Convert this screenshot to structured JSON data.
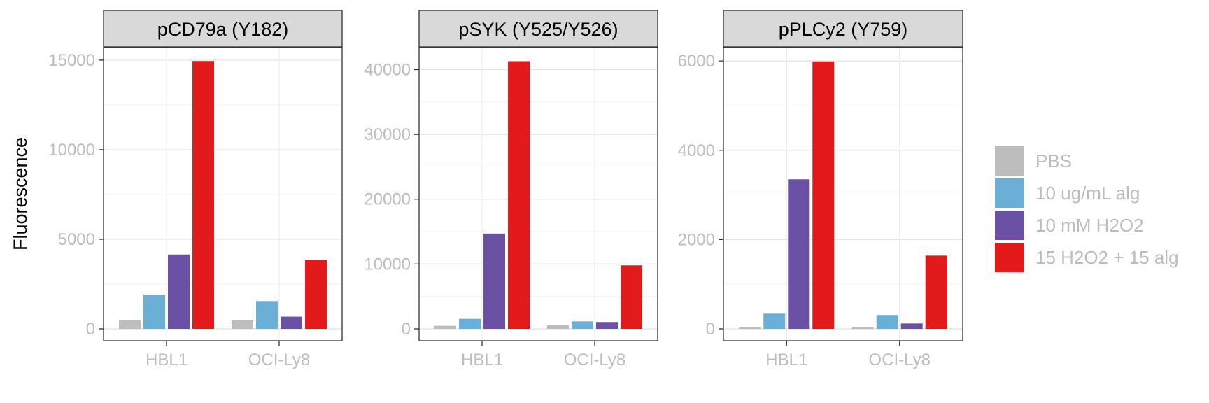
{
  "chart_data": [
    {
      "type": "bar",
      "title": "pCD79a (Y182)",
      "ylabel": "Fluorescence",
      "categories": [
        "HBL1",
        "OCI-Ly8"
      ],
      "yticks": [
        0,
        5000,
        10000,
        15000
      ],
      "ylim": [
        0,
        15700
      ],
      "series": [
        {
          "name": "PBS",
          "values": [
            480,
            470
          ]
        },
        {
          "name": "10 ug/mL alg",
          "values": [
            1900,
            1550
          ]
        },
        {
          "name": "10 mM H2O2",
          "values": [
            4150,
            680
          ]
        },
        {
          "name": "15 H2O2 + 15 alg",
          "values": [
            14950,
            3850
          ]
        }
      ]
    },
    {
      "type": "bar",
      "title": "pSYK (Y525/Y526)",
      "categories": [
        "HBL1",
        "OCI-Ly8"
      ],
      "yticks": [
        0,
        10000,
        20000,
        30000,
        40000
      ],
      "ylim": [
        0,
        43400
      ],
      "series": [
        {
          "name": "PBS",
          "values": [
            480,
            560
          ]
        },
        {
          "name": "10 ug/mL alg",
          "values": [
            1550,
            1150
          ]
        },
        {
          "name": "10 mM H2O2",
          "values": [
            14700,
            1050
          ]
        },
        {
          "name": "15 H2O2 + 15 alg",
          "values": [
            41300,
            9800
          ]
        }
      ]
    },
    {
      "type": "bar",
      "title": "pPLCy2 (Y759)",
      "categories": [
        "HBL1",
        "OCI-Ly8"
      ],
      "yticks": [
        0,
        2000,
        4000,
        6000
      ],
      "ylim": [
        0,
        6300
      ],
      "series": [
        {
          "name": "PBS",
          "values": [
            40,
            40
          ]
        },
        {
          "name": "10 ug/mL alg",
          "values": [
            340,
            310
          ]
        },
        {
          "name": "10 mM H2O2",
          "values": [
            3350,
            120
          ]
        },
        {
          "name": "15 H2O2 + 15 alg",
          "values": [
            5990,
            1640
          ]
        }
      ]
    }
  ],
  "legend": {
    "items": [
      {
        "label": "PBS",
        "color": "#bdbdbd"
      },
      {
        "label": "10 ug/mL alg",
        "color": "#6baed6"
      },
      {
        "label": "10 mM H2O2",
        "color": "#6a51a3"
      },
      {
        "label": "15 H2O2 + 15 alg",
        "color": "#e31a1c"
      }
    ]
  },
  "style": {
    "grid": true,
    "legend_position": "right"
  }
}
